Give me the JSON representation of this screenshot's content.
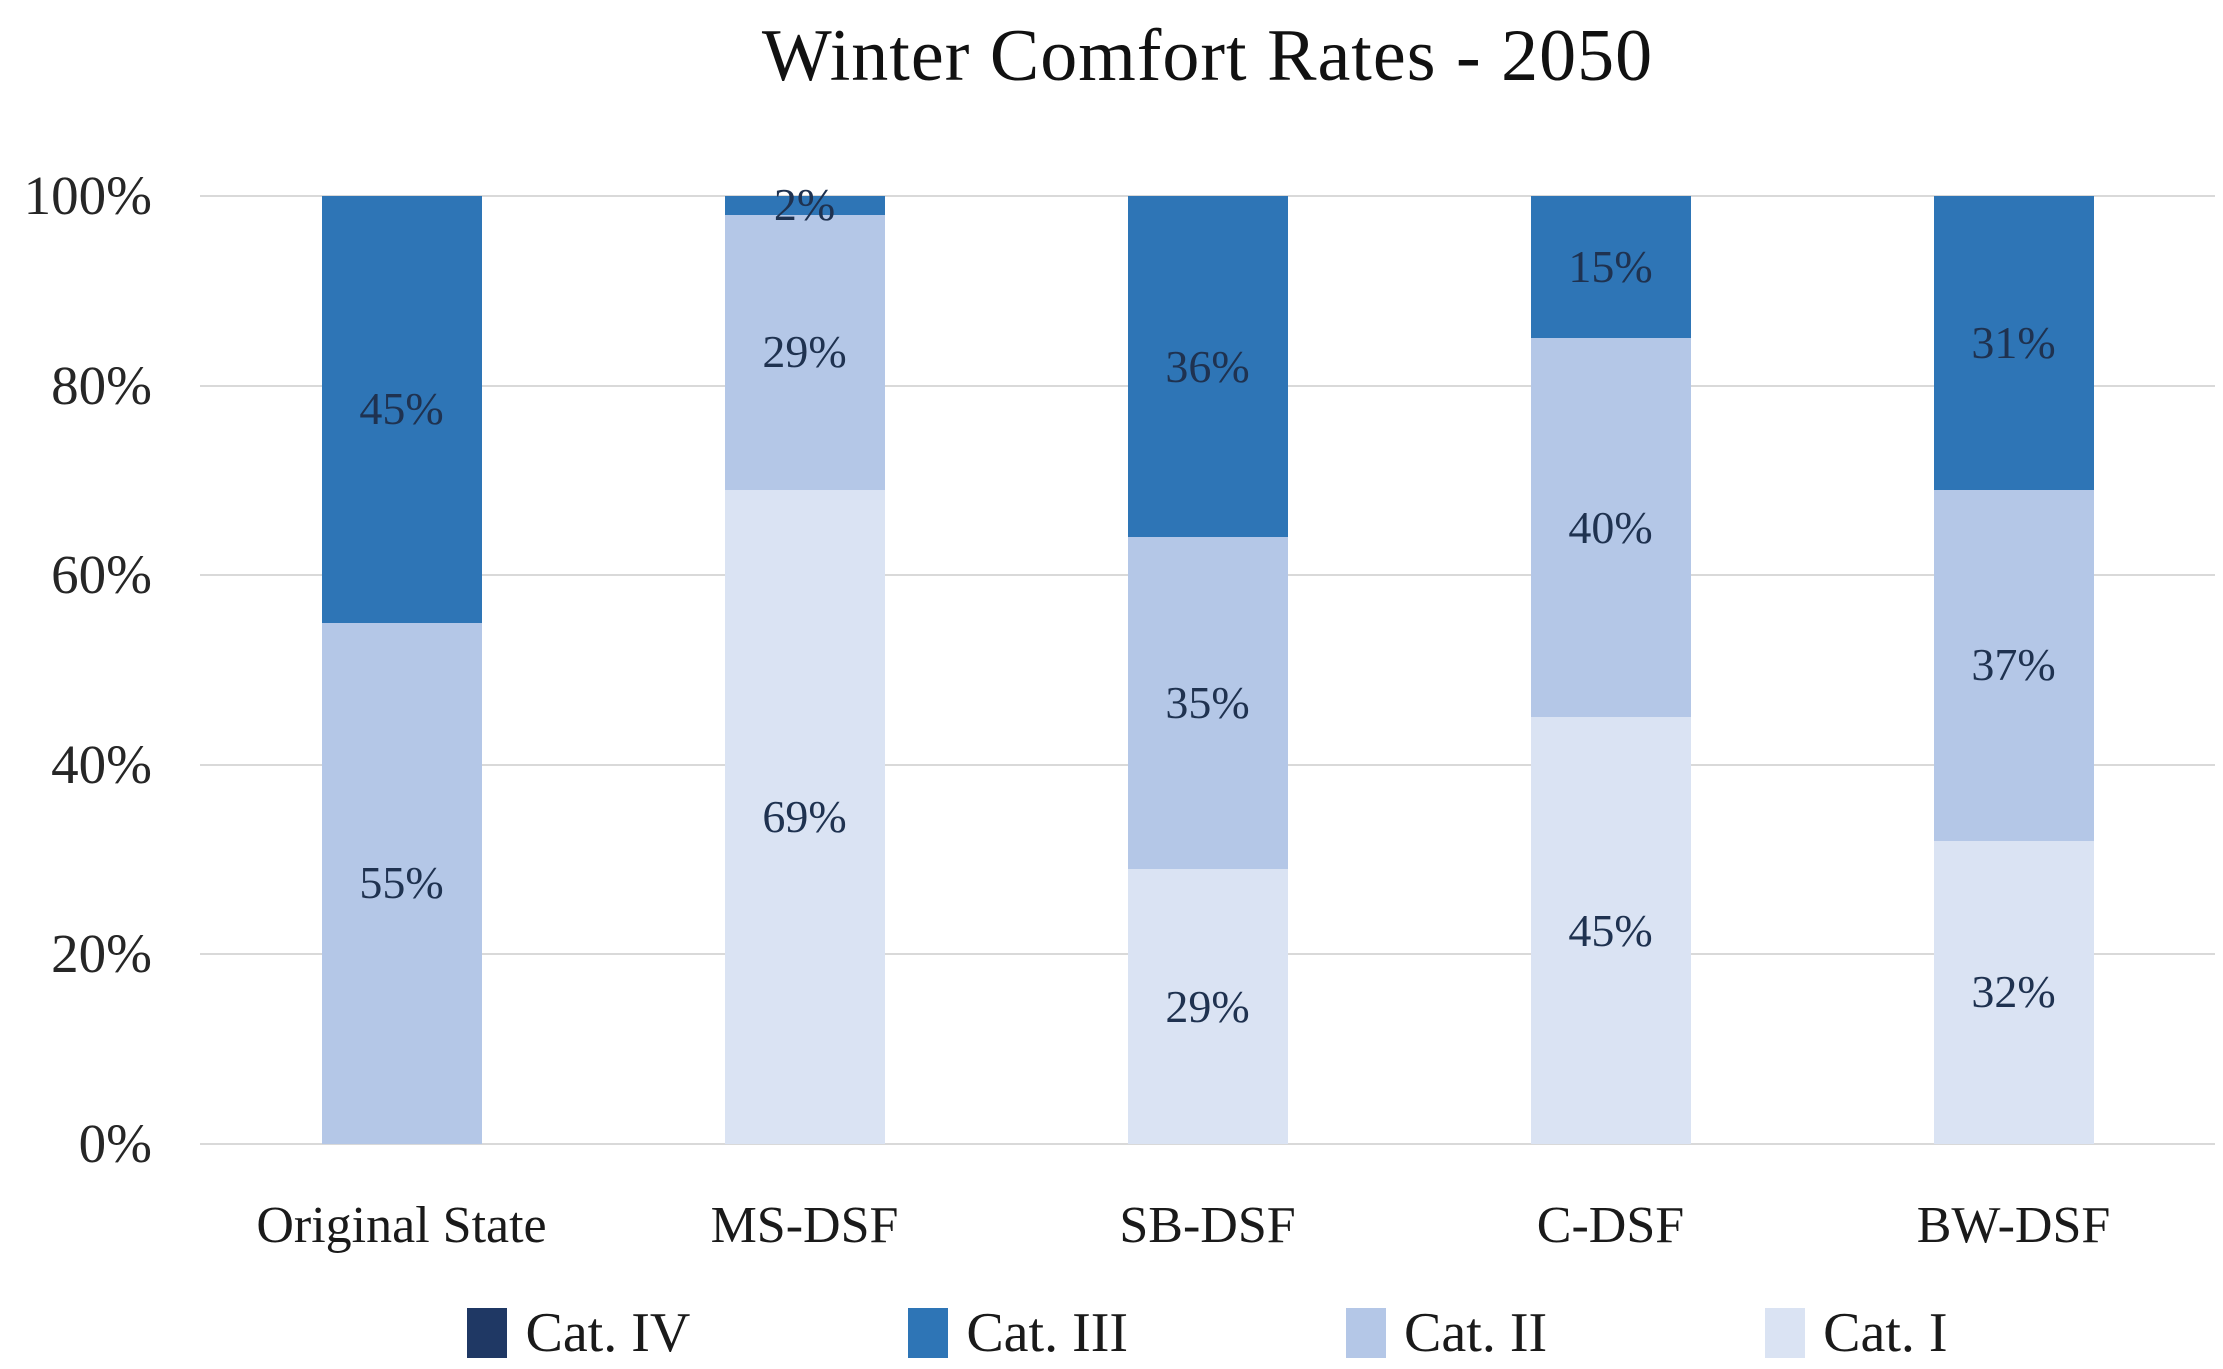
{
  "title": "Winter Comfort Rates - 2050",
  "chart_data": {
    "type": "bar",
    "variant": "100-percent-stacked-column",
    "title": "Winter Comfort Rates - 2050",
    "categories": [
      "Original State",
      "MS-DSF",
      "SB-DSF",
      "C-DSF",
      "BW-DSF"
    ],
    "series": [
      {
        "name": "Cat. I",
        "color": "#DAE3F3",
        "values": [
          0,
          69,
          29,
          45,
          32
        ],
        "labels": [
          "",
          "69%",
          "29%",
          "45%",
          "32%"
        ]
      },
      {
        "name": "Cat. II",
        "color": "#B4C7E7",
        "values": [
          55,
          29,
          35,
          40,
          37
        ],
        "labels": [
          "55%",
          "29%",
          "35%",
          "40%",
          "37%"
        ]
      },
      {
        "name": "Cat. III",
        "color": "#2E75B6",
        "values": [
          45,
          2,
          36,
          15,
          31
        ],
        "labels": [
          "45%",
          "2%",
          "36%",
          "15%",
          "31%"
        ]
      },
      {
        "name": "Cat. IV",
        "color": "#1F3864",
        "values": [
          0,
          0,
          0,
          0,
          0
        ],
        "labels": [
          "",
          "",
          "",
          "",
          ""
        ]
      }
    ],
    "y_axis": {
      "min": 0,
      "max": 100,
      "tick_step": 20,
      "tick_labels": [
        "100%",
        "80%",
        "60%",
        "40%",
        "20%",
        "0%"
      ],
      "gridlines": true
    },
    "xlabel": "",
    "ylabel": "",
    "legend": {
      "position": "bottom",
      "entries": [
        {
          "label": "Cat. IV",
          "color": "#1F3864"
        },
        {
          "label": "Cat. III",
          "color": "#2E75B6"
        },
        {
          "label": "Cat. II",
          "color": "#B4C7E7"
        },
        {
          "label": "Cat. I",
          "color": "#DAE3F3"
        }
      ]
    }
  },
  "style": {
    "background": "#FFFFFF",
    "gridline_color": "#D9D9D9",
    "data_label_color": "#1F3250",
    "axis_text_color": "#262626",
    "title_color": "#111111"
  }
}
